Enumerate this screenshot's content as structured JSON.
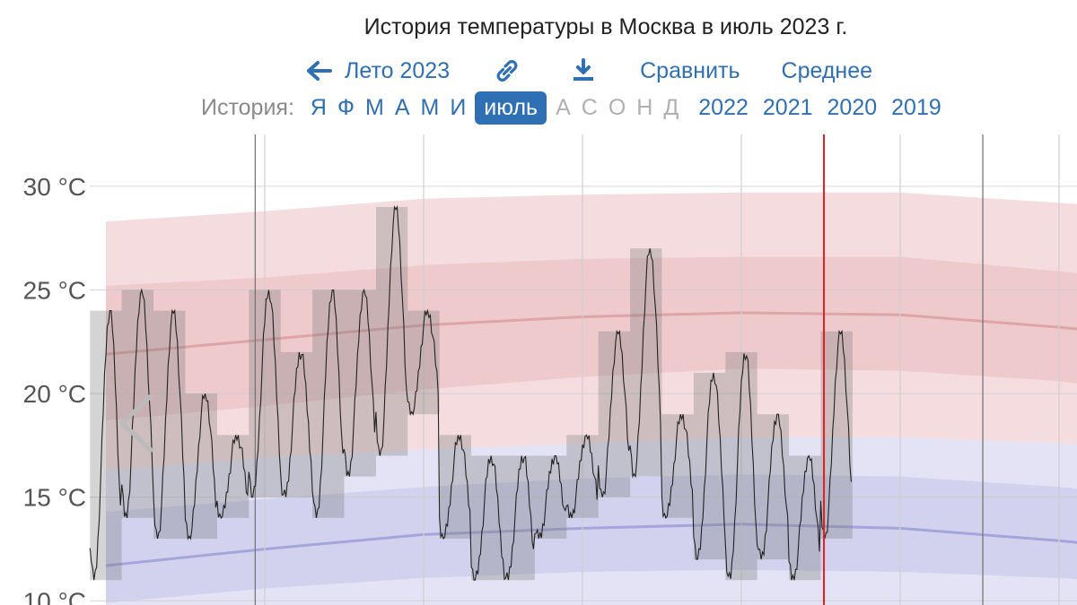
{
  "title": "История температуры в Москва в июль 2023 г.",
  "nav": {
    "season_label": "Лето 2023",
    "link_icon": "link-icon",
    "download_icon": "download-icon",
    "compare_label": "Сравнить",
    "average_label": "Среднее"
  },
  "history": {
    "label": "История:",
    "months": [
      {
        "label": "Я",
        "state": "link"
      },
      {
        "label": "Ф",
        "state": "link"
      },
      {
        "label": "М",
        "state": "link"
      },
      {
        "label": "А",
        "state": "link"
      },
      {
        "label": "М",
        "state": "link"
      },
      {
        "label": "И",
        "state": "link"
      },
      {
        "label": "июль",
        "state": "active"
      },
      {
        "label": "А",
        "state": "disabled"
      },
      {
        "label": "С",
        "state": "disabled"
      },
      {
        "label": "О",
        "state": "disabled"
      },
      {
        "label": "Н",
        "state": "disabled"
      },
      {
        "label": "Д",
        "state": "disabled"
      }
    ],
    "years": [
      "2022",
      "2021",
      "2020",
      "2019"
    ]
  },
  "colors": {
    "accent": "#2f6fb3",
    "high_band": "#e8b4b8",
    "low_band": "#b8b8e6",
    "high_mean": "#d99a9c",
    "low_mean": "#9a9ad6",
    "observed": "#222222",
    "current": "#e02020"
  },
  "chart_data": {
    "type": "line",
    "yticks": [
      "10 °C",
      "15 °C",
      "20 °C",
      "25 °C",
      "30 °C"
    ],
    "ylim": [
      9.8,
      32.5
    ],
    "xlim": [
      0,
      33
    ],
    "current_day": 23.6,
    "grid": true,
    "nav_icon": "chevron-left-icon",
    "normals": {
      "x": [
        1,
        6,
        11,
        16,
        21,
        26,
        31,
        33
      ],
      "high_p90": [
        28.3,
        28.8,
        29.4,
        29.6,
        29.7,
        29.7,
        29.2,
        29.0
      ],
      "high_p75": [
        25.2,
        25.6,
        26.2,
        26.5,
        26.6,
        26.6,
        25.9,
        25.6
      ],
      "high_mean": [
        21.9,
        22.6,
        23.3,
        23.7,
        23.9,
        23.8,
        23.2,
        22.9
      ],
      "high_p25": [
        18.7,
        19.4,
        20.2,
        20.8,
        21.2,
        21.1,
        20.6,
        20.2
      ],
      "high_p10": [
        16.3,
        16.9,
        17.3,
        17.6,
        17.9,
        17.9,
        17.6,
        17.4
      ],
      "low_p90": [
        16.3,
        16.9,
        17.3,
        17.6,
        17.9,
        17.9,
        17.6,
        17.4
      ],
      "low_p75": [
        14.3,
        14.9,
        15.5,
        15.9,
        16.1,
        16.0,
        15.5,
        15.2
      ],
      "low_mean": [
        11.7,
        12.5,
        13.2,
        13.5,
        13.7,
        13.5,
        12.9,
        12.6
      ],
      "low_p25": [
        9.9,
        10.6,
        11.1,
        11.4,
        11.5,
        11.4,
        11.1,
        10.9
      ],
      "low_p10": [
        9.7,
        9.7,
        9.8,
        9.8,
        9.8,
        9.8,
        9.7,
        9.7
      ]
    },
    "daily": [
      {
        "day": 1,
        "min": 11,
        "max": 24
      },
      {
        "day": 2,
        "min": 14,
        "max": 25
      },
      {
        "day": 3,
        "min": 13,
        "max": 24
      },
      {
        "day": 4,
        "min": 13,
        "max": 20
      },
      {
        "day": 5,
        "min": 14,
        "max": 18
      },
      {
        "day": 6,
        "min": 15,
        "max": 25
      },
      {
        "day": 7,
        "min": 15,
        "max": 22
      },
      {
        "day": 8,
        "min": 14,
        "max": 25
      },
      {
        "day": 9,
        "min": 16,
        "max": 25
      },
      {
        "day": 10,
        "min": 17,
        "max": 29
      },
      {
        "day": 11,
        "min": 19,
        "max": 24
      },
      {
        "day": 12,
        "min": 13,
        "max": 18
      },
      {
        "day": 13,
        "min": 11,
        "max": 17
      },
      {
        "day": 14,
        "min": 11,
        "max": 17
      },
      {
        "day": 15,
        "min": 13,
        "max": 17
      },
      {
        "day": 16,
        "min": 14,
        "max": 18
      },
      {
        "day": 17,
        "min": 15,
        "max": 23
      },
      {
        "day": 18,
        "min": 16,
        "max": 27
      },
      {
        "day": 19,
        "min": 14,
        "max": 19
      },
      {
        "day": 20,
        "min": 12,
        "max": 21
      },
      {
        "day": 21,
        "min": 11,
        "max": 22
      },
      {
        "day": 22,
        "min": 12,
        "max": 19
      },
      {
        "day": 23,
        "min": 11,
        "max": 17
      },
      {
        "day": 24,
        "min": 13,
        "max": 23
      }
    ]
  }
}
